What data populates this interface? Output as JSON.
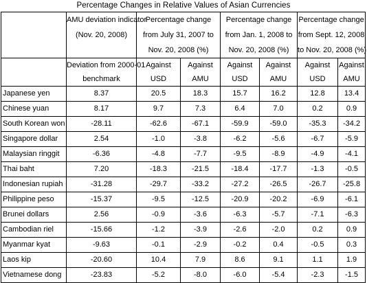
{
  "title": "Percentage Changes in Relative Values of Asian Currencies",
  "header": {
    "group_headers": [
      {
        "line1": "AMU deviation indicator",
        "line2": "(Nov. 20, 2008)"
      },
      {
        "line1": "Percentage change",
        "line2": "from July 31, 2007 to",
        "line3": "Nov. 20, 2008 (%)"
      },
      {
        "line1": "Percentage change",
        "line2": "from Jan. 1, 2008 to",
        "line3": "Nov. 20, 2008 (%)"
      },
      {
        "line1": "Percentage change",
        "line2": "from Sept. 12, 2008",
        "line3": "to Nov. 20, 2008 (%)"
      }
    ],
    "sub_headers": [
      {
        "line1": "Deviation from 2000-01",
        "line2": "benchmark"
      },
      {
        "line1": "Against",
        "line2": "USD"
      },
      {
        "line1": "Against",
        "line2": "AMU"
      },
      {
        "line1": "Against",
        "line2": "USD"
      },
      {
        "line1": "Against",
        "line2": "AMU"
      },
      {
        "line1": "Against",
        "line2": "USD"
      },
      {
        "line1": "Against",
        "line2": "AMU"
      }
    ]
  },
  "rows": [
    {
      "currency": "Japanese yen",
      "values": [
        "8.37",
        "20.5",
        "18.3",
        "15.7",
        "16.2",
        "12.8",
        "13.4"
      ]
    },
    {
      "currency": "Chinese yuan",
      "values": [
        "8.17",
        "9.7",
        "7.3",
        "6.4",
        "7.0",
        "0.2",
        "0.9"
      ]
    },
    {
      "currency": "South Korean won",
      "values": [
        "-28.11",
        "-62.6",
        "-67.1",
        "-59.9",
        "-59.0",
        "-35.3",
        "-34.2"
      ]
    },
    {
      "currency": "Singapore dollar",
      "values": [
        "2.54",
        "-1.0",
        "-3.8",
        "-6.2",
        "-5.6",
        "-6.7",
        "-5.9"
      ]
    },
    {
      "currency": "Malaysian ringgit",
      "values": [
        "-6.36",
        "-4.8",
        "-7.7",
        "-9.5",
        "-8.9",
        "-4.9",
        "-4.1"
      ]
    },
    {
      "currency": "Thai baht",
      "values": [
        "7.20",
        "-18.3",
        "-21.5",
        "-18.4",
        "-17.7",
        "-1.3",
        "-0.5"
      ]
    },
    {
      "currency": "Indonesian rupiah",
      "values": [
        "-31.28",
        "-29.7",
        "-33.2",
        "-27.2",
        "-26.5",
        "-26.7",
        "-25.8"
      ]
    },
    {
      "currency": "Philippine peso",
      "values": [
        "-15.37",
        "-9.5",
        "-12.5",
        "-20.9",
        "-20.2",
        "-6.9",
        "-6.1"
      ]
    },
    {
      "currency": "Brunei dollars",
      "values": [
        "2.56",
        "-0.9",
        "-3.6",
        "-6.3",
        "-5.7",
        "-7.1",
        "-6.3"
      ]
    },
    {
      "currency": "Cambodian riel",
      "values": [
        "-15.66",
        "-1.2",
        "-3.9",
        "-2.6",
        "-2.0",
        "0.2",
        "0.9"
      ]
    },
    {
      "currency": "Myanmar kyat",
      "values": [
        "-9.63",
        "-0.1",
        "-2.9",
        "-0.2",
        "0.4",
        "-0.5",
        "0.3"
      ]
    },
    {
      "currency": "Laos kip",
      "values": [
        "-20.60",
        "10.4",
        "7.9",
        "8.6",
        "9.1",
        "1.1",
        "1.9"
      ]
    },
    {
      "currency": "Vietnamese dong",
      "values": [
        "-23.83",
        "-5.2",
        "-8.0",
        "-6.0",
        "-5.4",
        "-2.3",
        "-1.5"
      ]
    }
  ]
}
